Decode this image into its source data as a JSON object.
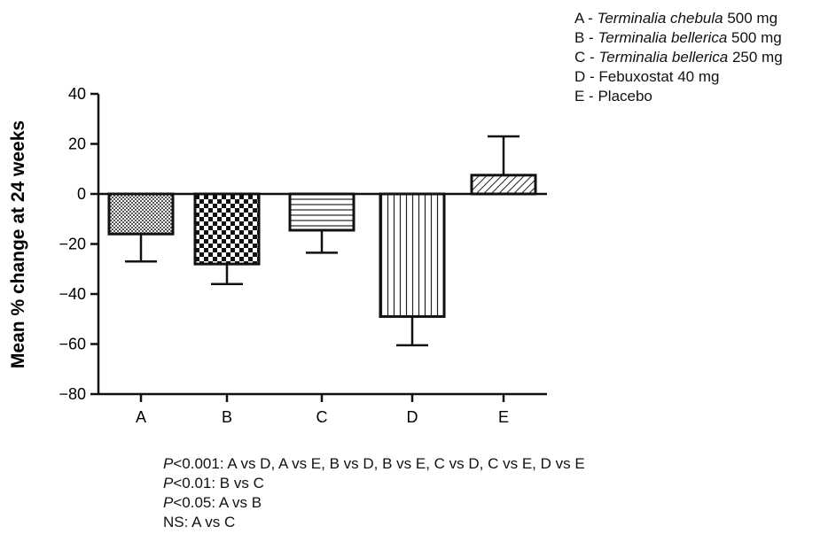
{
  "chart_data": {
    "type": "bar",
    "categories": [
      "A",
      "B",
      "C",
      "D",
      "E"
    ],
    "values": [
      -16,
      -28,
      -14.5,
      -49,
      7.5
    ],
    "error_upper": [
      -27,
      -36,
      -23.5,
      -60.5,
      23
    ],
    "ylabel": "Mean % change at 24 weeks",
    "xlabel": "",
    "ylim": [
      -80,
      40
    ],
    "yticks": [
      40,
      20,
      0,
      -20,
      -40,
      -60,
      -80
    ],
    "patterns": [
      "crosshatch",
      "checker",
      "horizontal",
      "vertical",
      "diagonal"
    ],
    "grid": false
  },
  "legend": [
    {
      "prefix": "A - ",
      "italic": "Terminalia chebula",
      "suffix": " 500 mg"
    },
    {
      "prefix": "B - ",
      "italic": "Terminalia bellerica",
      "suffix": " 500 mg"
    },
    {
      "prefix": "C - ",
      "italic": "Terminalia bellerica",
      "suffix": " 250 mg"
    },
    {
      "prefix": "D - ",
      "italic": "",
      "suffix": "Febuxostat 40 mg"
    },
    {
      "prefix": "E - ",
      "italic": "",
      "suffix": "Placebo"
    }
  ],
  "stats": [
    {
      "p": "P",
      "text": "<0.001: A vs D, A vs E, B vs D, B vs E, C vs D, C vs E, D vs E"
    },
    {
      "p": "P",
      "text": "<0.01: B vs C"
    },
    {
      "p": "P",
      "text": "<0.05: A vs B"
    },
    {
      "p": "",
      "text": "NS: A vs C"
    }
  ]
}
